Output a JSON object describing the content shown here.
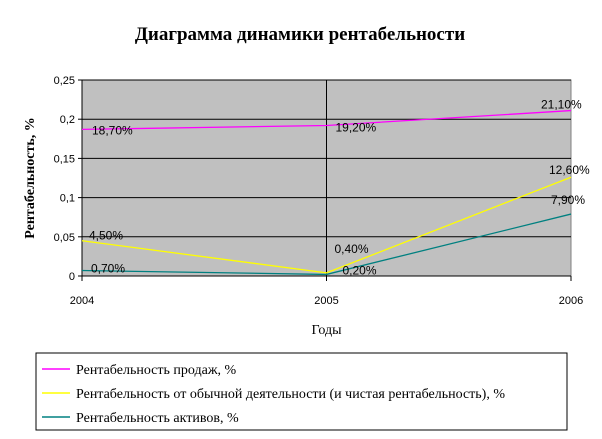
{
  "chart_data": {
    "type": "line",
    "title": "Диаграмма динамики рентабельности",
    "xlabel": "Годы",
    "ylabel": "Рентабельность, %",
    "categories": [
      "2004",
      "2005",
      "2006"
    ],
    "ylim": [
      0,
      0.25
    ],
    "yticks": [
      "0",
      "0,05",
      "0,1",
      "0,15",
      "0,2",
      "0,25"
    ],
    "grid": true,
    "legend_position": "bottom",
    "plot_background": "#c0c0c0",
    "series": [
      {
        "name": "Рентабельность продаж, %",
        "color": "#ff00ff",
        "values": [
          0.187,
          0.192,
          0.211
        ],
        "labels": [
          "18,70%",
          "19,20%",
          "21,10%"
        ]
      },
      {
        "name": "Рентабельность от обычной деятельности (и чистая рентабельность), %",
        "color": "#ffff00",
        "values": [
          0.045,
          0.004,
          0.126
        ],
        "labels": [
          "4,50%",
          "0,40%",
          "12,60%"
        ]
      },
      {
        "name": "Рентабельность активов, %",
        "color": "#008080",
        "values": [
          0.007,
          0.002,
          0.079
        ],
        "labels": [
          "0,70%",
          "0,20%",
          "7,90%"
        ]
      }
    ]
  }
}
